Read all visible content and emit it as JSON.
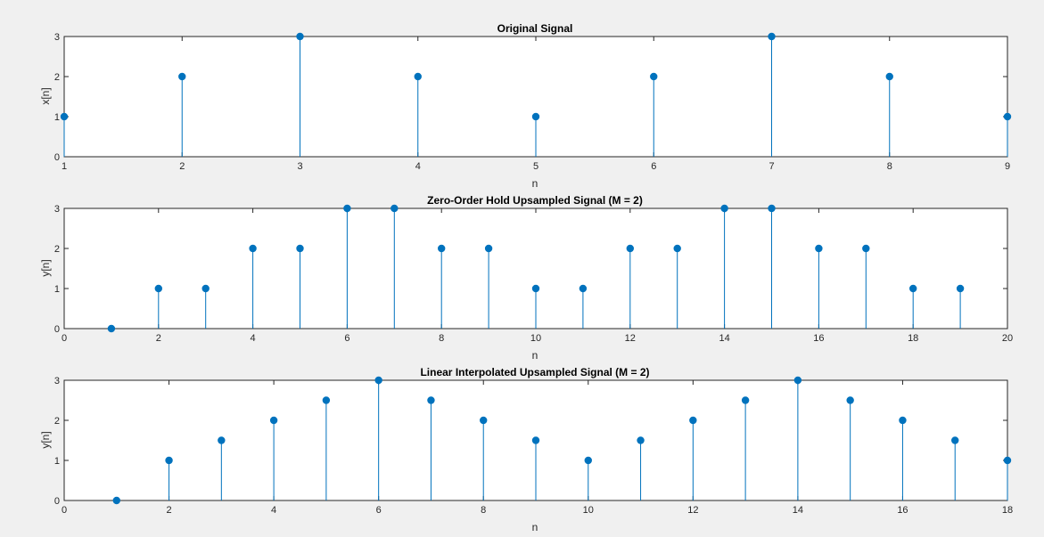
{
  "colors": {
    "figure_background": "#f0f0f0",
    "axes_background": "#ffffff",
    "axes_line": "#262626",
    "stem": "#0072bd"
  },
  "chart_data": [
    {
      "type": "stem",
      "title": "Original Signal",
      "xlabel": "n",
      "ylabel": "x[n]",
      "xlim": [
        1,
        9
      ],
      "ylim": [
        0,
        3
      ],
      "xticks": [
        1,
        2,
        3,
        4,
        5,
        6,
        7,
        8,
        9
      ],
      "yticks": [
        0,
        1,
        2,
        3
      ],
      "x": [
        1,
        2,
        3,
        4,
        5,
        6,
        7,
        8,
        9
      ],
      "y": [
        1,
        2,
        3,
        2,
        1,
        2,
        3,
        2,
        1
      ],
      "grid": false
    },
    {
      "type": "stem",
      "title": "Zero-Order Hold Upsampled Signal (M = 2)",
      "xlabel": "n",
      "ylabel": "y[n]",
      "xlim": [
        0,
        20
      ],
      "ylim": [
        0,
        3
      ],
      "xticks": [
        0,
        2,
        4,
        6,
        8,
        10,
        12,
        14,
        16,
        18,
        20
      ],
      "yticks": [
        0,
        1,
        2,
        3
      ],
      "x": [
        1,
        2,
        3,
        4,
        5,
        6,
        7,
        8,
        9,
        10,
        11,
        12,
        13,
        14,
        15,
        16,
        17,
        18,
        19
      ],
      "y": [
        0,
        1,
        1,
        2,
        2,
        3,
        3,
        2,
        2,
        1,
        1,
        2,
        2,
        3,
        3,
        2,
        2,
        1,
        1
      ],
      "grid": false
    },
    {
      "type": "stem",
      "title": "Linear Interpolated Upsampled Signal (M = 2)",
      "xlabel": "n",
      "ylabel": "y[n]",
      "xlim": [
        0,
        18
      ],
      "ylim": [
        0,
        3
      ],
      "xticks": [
        0,
        2,
        4,
        6,
        8,
        10,
        12,
        14,
        16,
        18
      ],
      "yticks": [
        0,
        1,
        2,
        3
      ],
      "x": [
        1,
        2,
        3,
        4,
        5,
        6,
        7,
        8,
        9,
        10,
        11,
        12,
        13,
        14,
        15,
        16,
        17,
        18
      ],
      "y": [
        0,
        1,
        1.5,
        2,
        2.5,
        3,
        2.5,
        2,
        1.5,
        1,
        1.5,
        2,
        2.5,
        3,
        2.5,
        2,
        1.5,
        1
      ],
      "grid": false
    }
  ]
}
